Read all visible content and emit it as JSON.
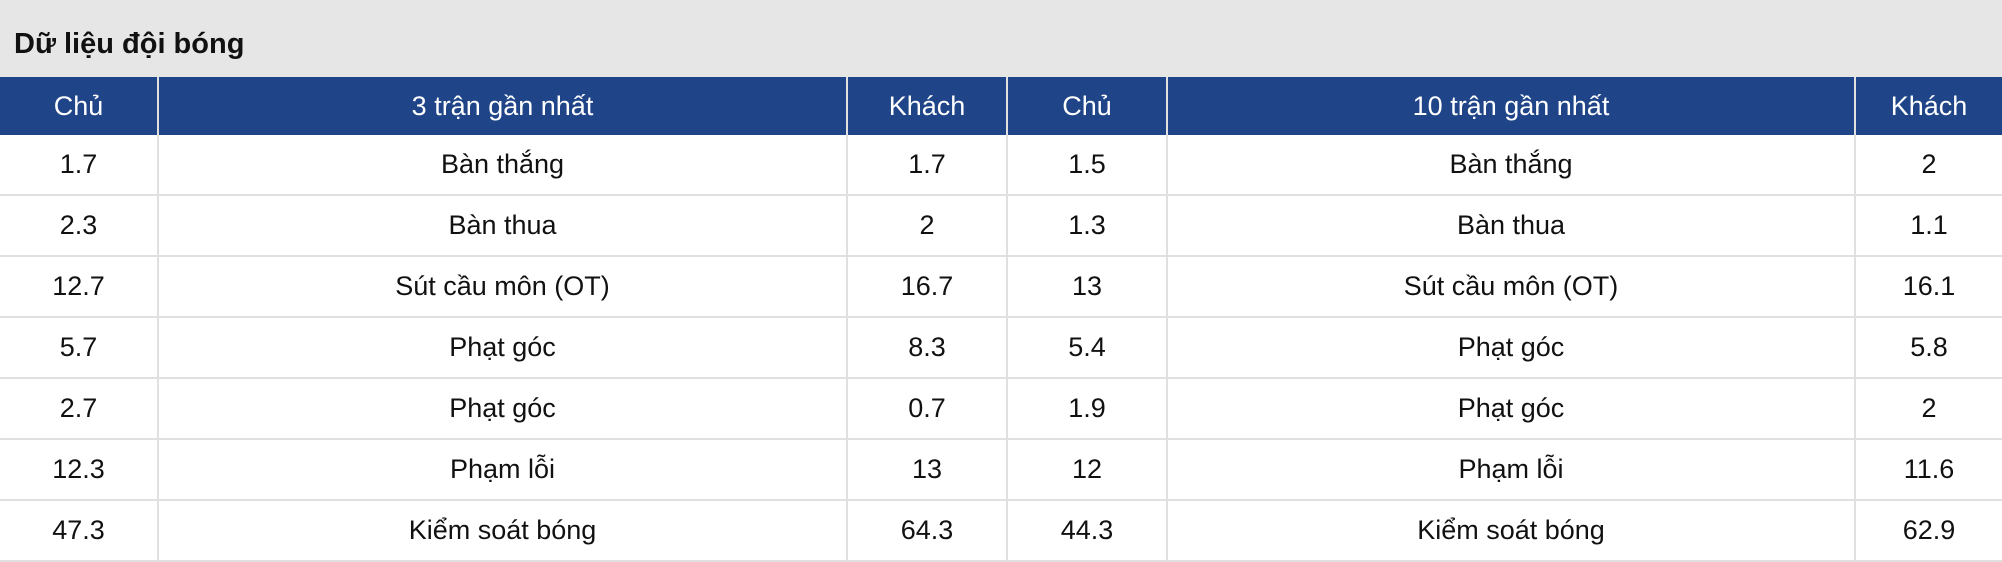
{
  "title": "Dữ liệu đội bóng",
  "headers": [
    "Chủ",
    "3 trận gần nhất",
    "Khách",
    "Chủ",
    "10 trận gần nhất",
    "Khách"
  ],
  "rows": [
    [
      "1.7",
      "Bàn thắng",
      "1.7",
      "1.5",
      "Bàn thắng",
      "2"
    ],
    [
      "2.3",
      "Bàn thua",
      "2",
      "1.3",
      "Bàn thua",
      "1.1"
    ],
    [
      "12.7",
      "Sút cầu môn (OT)",
      "16.7",
      "13",
      "Sút cầu môn (OT)",
      "16.1"
    ],
    [
      "5.7",
      "Phạt góc",
      "8.3",
      "5.4",
      "Phạt góc",
      "5.8"
    ],
    [
      "2.7",
      "Phạt góc",
      "0.7",
      "1.9",
      "Phạt góc",
      "2"
    ],
    [
      "12.3",
      "Phạm lỗi",
      "13",
      "12",
      "Phạm lỗi",
      "11.6"
    ],
    [
      "47.3",
      "Kiểm soát bóng",
      "64.3",
      "44.3",
      "Kiểm soát bóng",
      "62.9"
    ]
  ],
  "colors": {
    "header_bg": "#1f4588",
    "title_bg": "#e6e6e6"
  }
}
